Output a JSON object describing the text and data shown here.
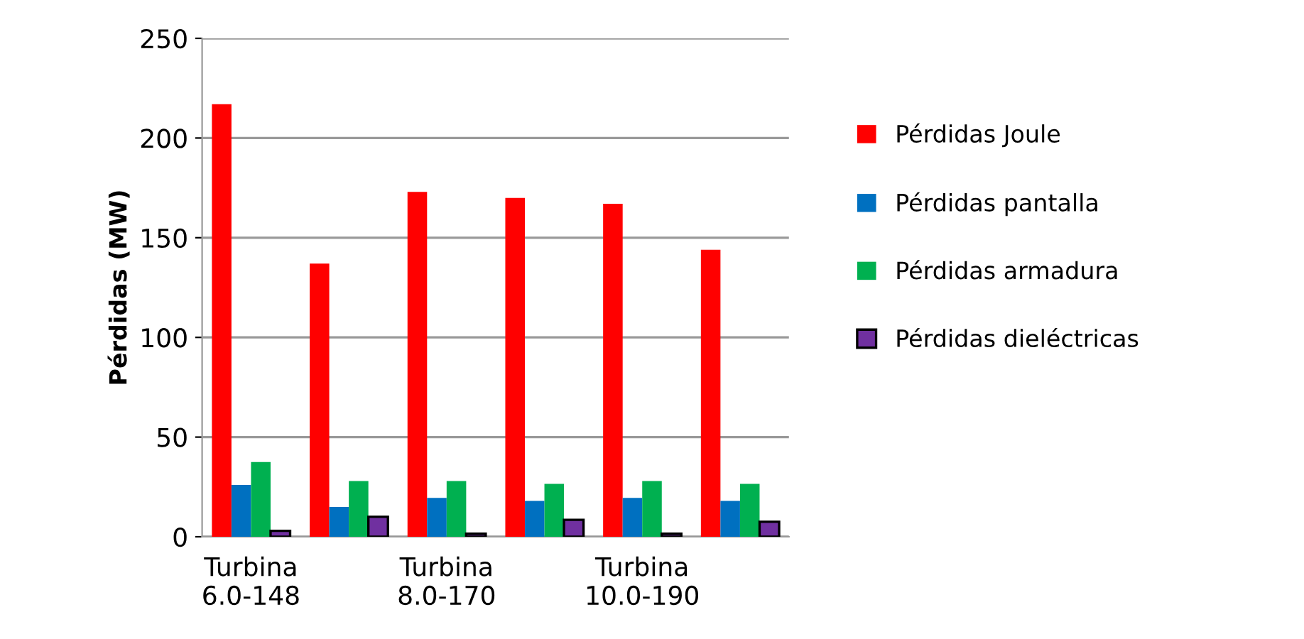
{
  "chart_data": {
    "type": "bar",
    "ylabel": "Pérdidas (MW)",
    "categories": [
      "Turbina\n6.0-148",
      null,
      "Turbina\n8.0-170",
      null,
      "Turbina\n10.0-190",
      null
    ],
    "series": [
      {
        "name": "Pérdidas Joule",
        "color": "#ff0000",
        "values": [
          217,
          137,
          173,
          170,
          167,
          144
        ]
      },
      {
        "name": "Pérdidas pantalla",
        "color": "#0070c0",
        "values": [
          26,
          15,
          19.5,
          18,
          19.5,
          18
        ]
      },
      {
        "name": "Pérdidas armadura",
        "color": "#00b050",
        "values": [
          37.5,
          28,
          28,
          26.5,
          28,
          26.5
        ]
      },
      {
        "name": "Pérdidas dieléctricas",
        "color": "#7030a0",
        "values": [
          3,
          10,
          1.5,
          8.5,
          1.5,
          7.5
        ]
      }
    ],
    "ylim": [
      0,
      250
    ],
    "yticks": [
      0,
      50,
      100,
      150,
      200,
      250
    ],
    "grid": "y",
    "legend": "right"
  }
}
